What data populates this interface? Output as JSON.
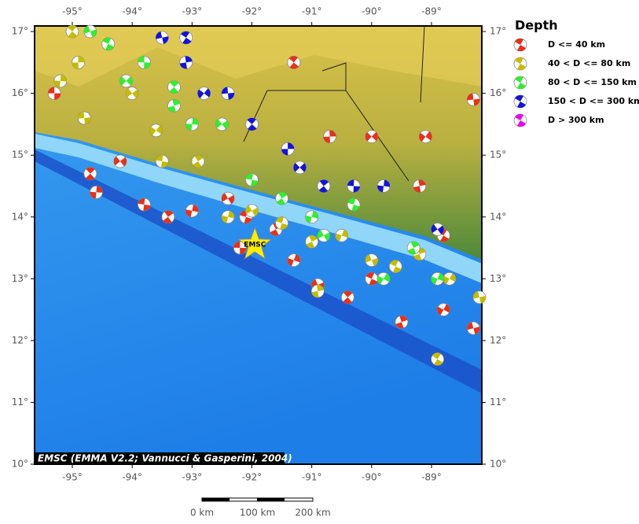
{
  "map": {
    "lonlim": [
      -95.63,
      -88.16
    ],
    "latlim": [
      10,
      17.09
    ],
    "lon_ticks": [
      {
        "value": -95,
        "label": "-95°"
      },
      {
        "value": -94,
        "label": "-94°"
      },
      {
        "value": -93,
        "label": "-93°"
      },
      {
        "value": -92,
        "label": "-92°"
      },
      {
        "value": -91,
        "label": "-91°"
      },
      {
        "value": -90,
        "label": "-90°"
      },
      {
        "value": -89,
        "label": "-89°"
      }
    ],
    "lat_ticks": [
      {
        "value": 10,
        "label": "10°"
      },
      {
        "value": 11,
        "label": "11°"
      },
      {
        "value": 12,
        "label": "12°"
      },
      {
        "value": 13,
        "label": "13°"
      },
      {
        "value": 14,
        "label": "14°"
      },
      {
        "value": 15,
        "label": "15°"
      },
      {
        "value": 16,
        "label": "16°"
      },
      {
        "value": 17,
        "label": "17°"
      }
    ],
    "credit": "EMSC (EMMA V2.2; Vannucci & Gasperini, 2004)",
    "marker": {
      "label": "EMSC",
      "lon": -91.95,
      "lat": 13.55
    },
    "legend": {
      "title": "Depth",
      "classes": [
        {
          "label": "D <= 40 km",
          "color": "#e8301a"
        },
        {
          "label": "40 < D <= 80 km",
          "color": "#c4bc00"
        },
        {
          "label": "80 < D <= 150 km",
          "color": "#30ee30"
        },
        {
          "label": "150 < D <= 300 km",
          "color": "#1414d8"
        },
        {
          "label": "D > 300 km",
          "color": "#f000f0"
        }
      ]
    },
    "scale_bar": {
      "labels": [
        "0 km",
        "100 km",
        "200 km"
      ]
    },
    "events": [
      {
        "lon": -95.3,
        "lat": 16.0,
        "class": 0
      },
      {
        "lon": -94.7,
        "lat": 14.7,
        "class": 0
      },
      {
        "lon": -94.6,
        "lat": 14.4,
        "class": 0
      },
      {
        "lon": -94.2,
        "lat": 14.9,
        "class": 0
      },
      {
        "lon": -93.8,
        "lat": 14.2,
        "class": 0
      },
      {
        "lon": -93.4,
        "lat": 14.0,
        "class": 0
      },
      {
        "lon": -93.0,
        "lat": 14.1,
        "class": 0
      },
      {
        "lon": -92.4,
        "lat": 14.3,
        "class": 0
      },
      {
        "lon": -92.1,
        "lat": 14.0,
        "class": 0
      },
      {
        "lon": -91.6,
        "lat": 13.8,
        "class": 0
      },
      {
        "lon": -91.3,
        "lat": 13.3,
        "class": 0
      },
      {
        "lon": -90.9,
        "lat": 12.9,
        "class": 0
      },
      {
        "lon": -90.0,
        "lat": 13.0,
        "class": 0
      },
      {
        "lon": -89.5,
        "lat": 12.3,
        "class": 0
      },
      {
        "lon": -88.8,
        "lat": 12.5,
        "class": 0
      },
      {
        "lon": -88.3,
        "lat": 12.2,
        "class": 0
      },
      {
        "lon": -88.8,
        "lat": 13.7,
        "class": 0
      },
      {
        "lon": -89.2,
        "lat": 14.5,
        "class": 0
      },
      {
        "lon": -89.1,
        "lat": 15.3,
        "class": 0
      },
      {
        "lon": -88.3,
        "lat": 15.9,
        "class": 0
      },
      {
        "lon": -91.3,
        "lat": 16.5,
        "class": 0
      },
      {
        "lon": -90.7,
        "lat": 15.3,
        "class": 0
      },
      {
        "lon": -90.0,
        "lat": 15.3,
        "class": 0
      },
      {
        "lon": -92.2,
        "lat": 13.5,
        "class": 0
      },
      {
        "lon": -90.4,
        "lat": 12.7,
        "class": 0
      },
      {
        "lon": -95.2,
        "lat": 16.2,
        "class": 1
      },
      {
        "lon": -94.0,
        "lat": 16.0,
        "class": 1
      },
      {
        "lon": -93.5,
        "lat": 14.9,
        "class": 1
      },
      {
        "lon": -92.9,
        "lat": 14.9,
        "class": 1
      },
      {
        "lon": -92.4,
        "lat": 14.0,
        "class": 1
      },
      {
        "lon": -92.0,
        "lat": 14.1,
        "class": 1
      },
      {
        "lon": -91.5,
        "lat": 13.9,
        "class": 1
      },
      {
        "lon": -91.0,
        "lat": 13.6,
        "class": 1
      },
      {
        "lon": -90.5,
        "lat": 13.7,
        "class": 1
      },
      {
        "lon": -90.0,
        "lat": 13.3,
        "class": 1
      },
      {
        "lon": -89.6,
        "lat": 13.2,
        "class": 1
      },
      {
        "lon": -89.2,
        "lat": 13.4,
        "class": 1
      },
      {
        "lon": -88.7,
        "lat": 13.0,
        "class": 1
      },
      {
        "lon": -88.2,
        "lat": 12.7,
        "class": 1
      },
      {
        "lon": -88.9,
        "lat": 11.7,
        "class": 1
      },
      {
        "lon": -90.9,
        "lat": 12.8,
        "class": 1
      },
      {
        "lon": -93.6,
        "lat": 15.4,
        "class": 1
      },
      {
        "lon": -94.8,
        "lat": 15.6,
        "class": 1
      },
      {
        "lon": -95.0,
        "lat": 17.0,
        "class": 1
      },
      {
        "lon": -94.9,
        "lat": 16.5,
        "class": 1
      },
      {
        "lon": -94.1,
        "lat": 16.2,
        "class": 2
      },
      {
        "lon": -93.8,
        "lat": 16.5,
        "class": 2
      },
      {
        "lon": -93.3,
        "lat": 16.1,
        "class": 2
      },
      {
        "lon": -93.0,
        "lat": 15.5,
        "class": 2
      },
      {
        "lon": -92.5,
        "lat": 15.5,
        "class": 2
      },
      {
        "lon": -92.0,
        "lat": 14.6,
        "class": 2
      },
      {
        "lon": -91.5,
        "lat": 14.3,
        "class": 2
      },
      {
        "lon": -91.0,
        "lat": 14.0,
        "class": 2
      },
      {
        "lon": -90.8,
        "lat": 13.7,
        "class": 2
      },
      {
        "lon": -90.3,
        "lat": 14.2,
        "class": 2
      },
      {
        "lon": -89.3,
        "lat": 13.5,
        "class": 2
      },
      {
        "lon": -88.9,
        "lat": 13.0,
        "class": 2
      },
      {
        "lon": -94.7,
        "lat": 17.0,
        "class": 2
      },
      {
        "lon": -94.4,
        "lat": 16.8,
        "class": 2
      },
      {
        "lon": -93.3,
        "lat": 15.8,
        "class": 2
      },
      {
        "lon": -89.8,
        "lat": 13.0,
        "class": 2
      },
      {
        "lon": -93.5,
        "lat": 16.9,
        "class": 3
      },
      {
        "lon": -93.1,
        "lat": 16.9,
        "class": 3
      },
      {
        "lon": -93.1,
        "lat": 16.5,
        "class": 3
      },
      {
        "lon": -92.8,
        "lat": 16.0,
        "class": 3
      },
      {
        "lon": -92.4,
        "lat": 16.0,
        "class": 3
      },
      {
        "lon": -92.0,
        "lat": 15.5,
        "class": 3
      },
      {
        "lon": -91.4,
        "lat": 15.1,
        "class": 3
      },
      {
        "lon": -91.2,
        "lat": 14.8,
        "class": 3
      },
      {
        "lon": -90.3,
        "lat": 14.5,
        "class": 3
      },
      {
        "lon": -90.8,
        "lat": 14.5,
        "class": 3
      },
      {
        "lon": -89.8,
        "lat": 14.5,
        "class": 3
      },
      {
        "lon": -88.9,
        "lat": 13.8,
        "class": 3
      }
    ]
  }
}
